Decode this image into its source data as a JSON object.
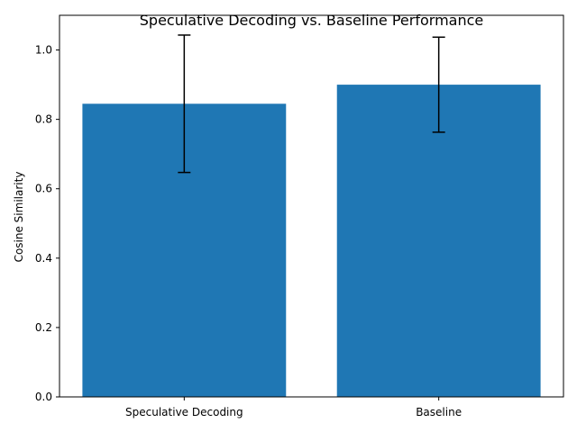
{
  "chart_data": {
    "type": "bar",
    "title": "Speculative Decoding vs. Baseline Performance",
    "xlabel": "",
    "ylabel": "Cosine Similarity",
    "categories": [
      "Speculative Decoding",
      "Baseline"
    ],
    "values": [
      0.845,
      0.9
    ],
    "errors": [
      0.198,
      0.137
    ],
    "ylim": [
      0,
      1.1
    ],
    "yticks": [
      "0.0",
      "0.2",
      "0.4",
      "0.6",
      "0.8",
      "1.0"
    ],
    "bar_color": "#1f77b4",
    "error_color": "#000000",
    "grid": false
  }
}
